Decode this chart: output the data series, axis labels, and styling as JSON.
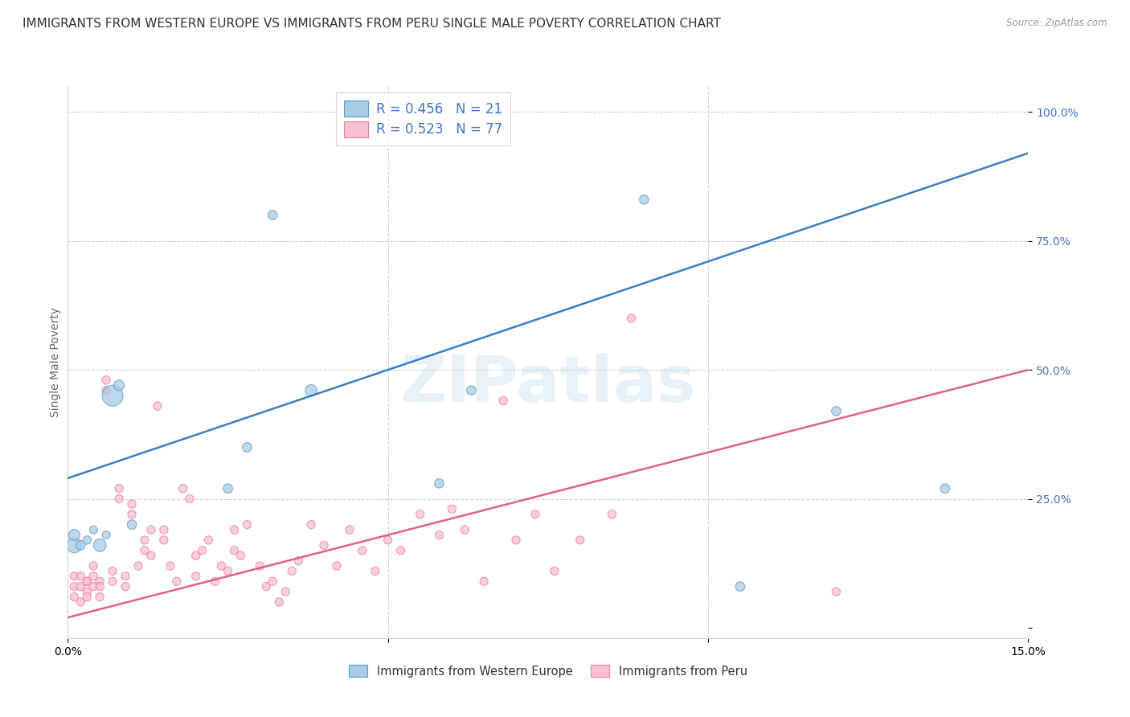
{
  "title": "IMMIGRANTS FROM WESTERN EUROPE VS IMMIGRANTS FROM PERU SINGLE MALE POVERTY CORRELATION CHART",
  "source": "Source: ZipAtlas.com",
  "ylabel": "Single Male Poverty",
  "xlim": [
    0.0,
    0.15
  ],
  "ylim": [
    -0.02,
    1.05
  ],
  "watermark": "ZIPatlas",
  "legend_r1": "R = 0.456",
  "legend_n1": "N = 21",
  "legend_r2": "R = 0.523",
  "legend_n2": "N = 77",
  "legend_label1": "Immigrants from Western Europe",
  "legend_label2": "Immigrants from Peru",
  "blue_fill": "#a8cce4",
  "pink_fill": "#f9c0d0",
  "blue_edge": "#5b9dc9",
  "pink_edge": "#e87fa0",
  "blue_line_color": "#3a7ebf",
  "pink_line_color": "#e06090",
  "blue_text_color": "#4472c4",
  "blue_scatter_x": [
    0.001,
    0.001,
    0.002,
    0.003,
    0.004,
    0.005,
    0.006,
    0.007,
    0.008,
    0.01,
    0.025,
    0.028,
    0.032,
    0.038,
    0.058,
    0.063,
    0.067,
    0.09,
    0.105,
    0.12,
    0.137
  ],
  "blue_scatter_y": [
    0.16,
    0.18,
    0.16,
    0.17,
    0.19,
    0.16,
    0.18,
    0.45,
    0.47,
    0.2,
    0.27,
    0.35,
    0.8,
    0.46,
    0.28,
    0.46,
    1.0,
    0.83,
    0.08,
    0.42,
    0.27
  ],
  "blue_scatter_s": [
    180,
    100,
    70,
    55,
    50,
    130,
    50,
    350,
    90,
    70,
    70,
    70,
    70,
    110,
    70,
    70,
    70,
    70,
    70,
    70,
    70
  ],
  "pink_scatter_x": [
    0.001,
    0.001,
    0.001,
    0.002,
    0.002,
    0.002,
    0.003,
    0.003,
    0.003,
    0.003,
    0.004,
    0.004,
    0.004,
    0.005,
    0.005,
    0.005,
    0.006,
    0.006,
    0.007,
    0.007,
    0.008,
    0.008,
    0.009,
    0.009,
    0.01,
    0.01,
    0.011,
    0.012,
    0.012,
    0.013,
    0.013,
    0.014,
    0.015,
    0.015,
    0.016,
    0.017,
    0.018,
    0.019,
    0.02,
    0.02,
    0.021,
    0.022,
    0.023,
    0.024,
    0.025,
    0.026,
    0.026,
    0.027,
    0.028,
    0.03,
    0.031,
    0.032,
    0.033,
    0.034,
    0.035,
    0.036,
    0.038,
    0.04,
    0.042,
    0.044,
    0.046,
    0.048,
    0.05,
    0.052,
    0.055,
    0.058,
    0.06,
    0.062,
    0.065,
    0.068,
    0.07,
    0.073,
    0.076,
    0.08,
    0.085,
    0.088,
    0.12
  ],
  "pink_scatter_y": [
    0.08,
    0.1,
    0.06,
    0.1,
    0.08,
    0.05,
    0.09,
    0.07,
    0.09,
    0.06,
    0.1,
    0.08,
    0.12,
    0.09,
    0.06,
    0.08,
    0.48,
    0.46,
    0.11,
    0.09,
    0.25,
    0.27,
    0.1,
    0.08,
    0.22,
    0.24,
    0.12,
    0.17,
    0.15,
    0.19,
    0.14,
    0.43,
    0.17,
    0.19,
    0.12,
    0.09,
    0.27,
    0.25,
    0.14,
    0.1,
    0.15,
    0.17,
    0.09,
    0.12,
    0.11,
    0.15,
    0.19,
    0.14,
    0.2,
    0.12,
    0.08,
    0.09,
    0.05,
    0.07,
    0.11,
    0.13,
    0.2,
    0.16,
    0.12,
    0.19,
    0.15,
    0.11,
    0.17,
    0.15,
    0.22,
    0.18,
    0.23,
    0.19,
    0.09,
    0.44,
    0.17,
    0.22,
    0.11,
    0.17,
    0.22,
    0.6,
    0.07
  ],
  "pink_scatter_s": [
    55,
    55,
    55,
    55,
    55,
    55,
    55,
    55,
    55,
    55,
    55,
    55,
    55,
    55,
    55,
    55,
    55,
    55,
    55,
    55,
    55,
    55,
    55,
    55,
    55,
    55,
    55,
    55,
    55,
    55,
    55,
    55,
    55,
    55,
    55,
    55,
    55,
    55,
    55,
    55,
    55,
    55,
    55,
    55,
    55,
    55,
    55,
    55,
    55,
    55,
    55,
    55,
    55,
    55,
    55,
    55,
    55,
    55,
    55,
    55,
    55,
    55,
    55,
    55,
    55,
    55,
    55,
    55,
    55,
    55,
    55,
    55,
    55,
    55,
    55,
    55,
    55
  ],
  "blue_trend_x0": 0.0,
  "blue_trend_y0": 0.29,
  "blue_trend_x1": 0.15,
  "blue_trend_y1": 0.92,
  "pink_trend_x0": 0.0,
  "pink_trend_y0": 0.02,
  "pink_trend_x1": 0.15,
  "pink_trend_y1": 0.5,
  "background_color": "#ffffff",
  "grid_color": "#d0d0d0"
}
